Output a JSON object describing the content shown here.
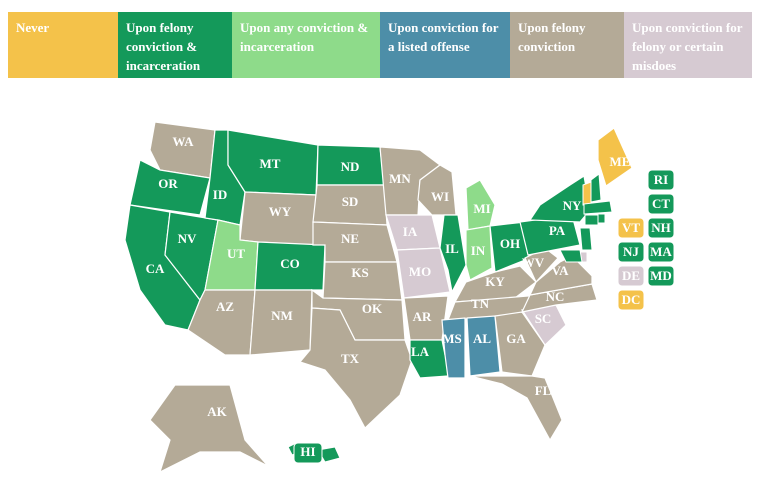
{
  "legend": [
    {
      "label": "Never",
      "color": "#f4c24a"
    },
    {
      "label": "Upon felony conviction & incarceration",
      "color": "#14995a"
    },
    {
      "label": "Upon any conviction & incarceration",
      "color": "#8edb8a"
    },
    {
      "label": "Upon conviction for a listed offense",
      "color": "#4d8ea8"
    },
    {
      "label": "Upon felony conviction",
      "color": "#b4aa97"
    },
    {
      "label": "Upon conviction for felony or certain misdoes",
      "color": "#d6cad2"
    }
  ],
  "states": [
    {
      "abbr": "WA",
      "color": "#b4aa97"
    },
    {
      "abbr": "OR",
      "color": "#14995a"
    },
    {
      "abbr": "CA",
      "color": "#14995a"
    },
    {
      "abbr": "NV",
      "color": "#14995a"
    },
    {
      "abbr": "ID",
      "color": "#14995a"
    },
    {
      "abbr": "MT",
      "color": "#14995a"
    },
    {
      "abbr": "WY",
      "color": "#b4aa97"
    },
    {
      "abbr": "UT",
      "color": "#8edb8a"
    },
    {
      "abbr": "CO",
      "color": "#14995a"
    },
    {
      "abbr": "AZ",
      "color": "#b4aa97"
    },
    {
      "abbr": "NM",
      "color": "#b4aa97"
    },
    {
      "abbr": "ND",
      "color": "#14995a"
    },
    {
      "abbr": "SD",
      "color": "#b4aa97"
    },
    {
      "abbr": "NE",
      "color": "#b4aa97"
    },
    {
      "abbr": "KS",
      "color": "#b4aa97"
    },
    {
      "abbr": "OK",
      "color": "#b4aa97"
    },
    {
      "abbr": "TX",
      "color": "#b4aa97"
    },
    {
      "abbr": "MN",
      "color": "#b4aa97"
    },
    {
      "abbr": "IA",
      "color": "#d6cad2"
    },
    {
      "abbr": "MO",
      "color": "#d6cad2"
    },
    {
      "abbr": "AR",
      "color": "#b4aa97"
    },
    {
      "abbr": "LA",
      "color": "#14995a"
    },
    {
      "abbr": "WI",
      "color": "#b4aa97"
    },
    {
      "abbr": "IL",
      "color": "#14995a"
    },
    {
      "abbr": "MI",
      "color": "#8edb8a"
    },
    {
      "abbr": "IN",
      "color": "#8edb8a"
    },
    {
      "abbr": "OH",
      "color": "#14995a"
    },
    {
      "abbr": "KY",
      "color": "#b4aa97"
    },
    {
      "abbr": "TN",
      "color": "#b4aa97"
    },
    {
      "abbr": "MS",
      "color": "#4d8ea8"
    },
    {
      "abbr": "AL",
      "color": "#4d8ea8"
    },
    {
      "abbr": "GA",
      "color": "#b4aa97"
    },
    {
      "abbr": "FL",
      "color": "#b4aa97"
    },
    {
      "abbr": "SC",
      "color": "#d6cad2"
    },
    {
      "abbr": "NC",
      "color": "#b4aa97"
    },
    {
      "abbr": "VA",
      "color": "#b4aa97"
    },
    {
      "abbr": "WV",
      "color": "#b4aa97"
    },
    {
      "abbr": "PA",
      "color": "#14995a"
    },
    {
      "abbr": "NY",
      "color": "#14995a"
    },
    {
      "abbr": "ME",
      "color": "#f4c24a"
    },
    {
      "abbr": "AK",
      "color": "#b4aa97"
    },
    {
      "abbr": "HI",
      "color": "#14995a"
    }
  ],
  "callout_states": [
    {
      "abbr": "RI",
      "color": "#14995a"
    },
    {
      "abbr": "CT",
      "color": "#14995a"
    },
    {
      "abbr": "VT",
      "color": "#f4c24a"
    },
    {
      "abbr": "NH",
      "color": "#14995a"
    },
    {
      "abbr": "NJ",
      "color": "#14995a"
    },
    {
      "abbr": "MA",
      "color": "#14995a"
    },
    {
      "abbr": "DE",
      "color": "#d6cad2"
    },
    {
      "abbr": "MD",
      "color": "#14995a"
    },
    {
      "abbr": "DC",
      "color": "#f4c24a"
    }
  ]
}
